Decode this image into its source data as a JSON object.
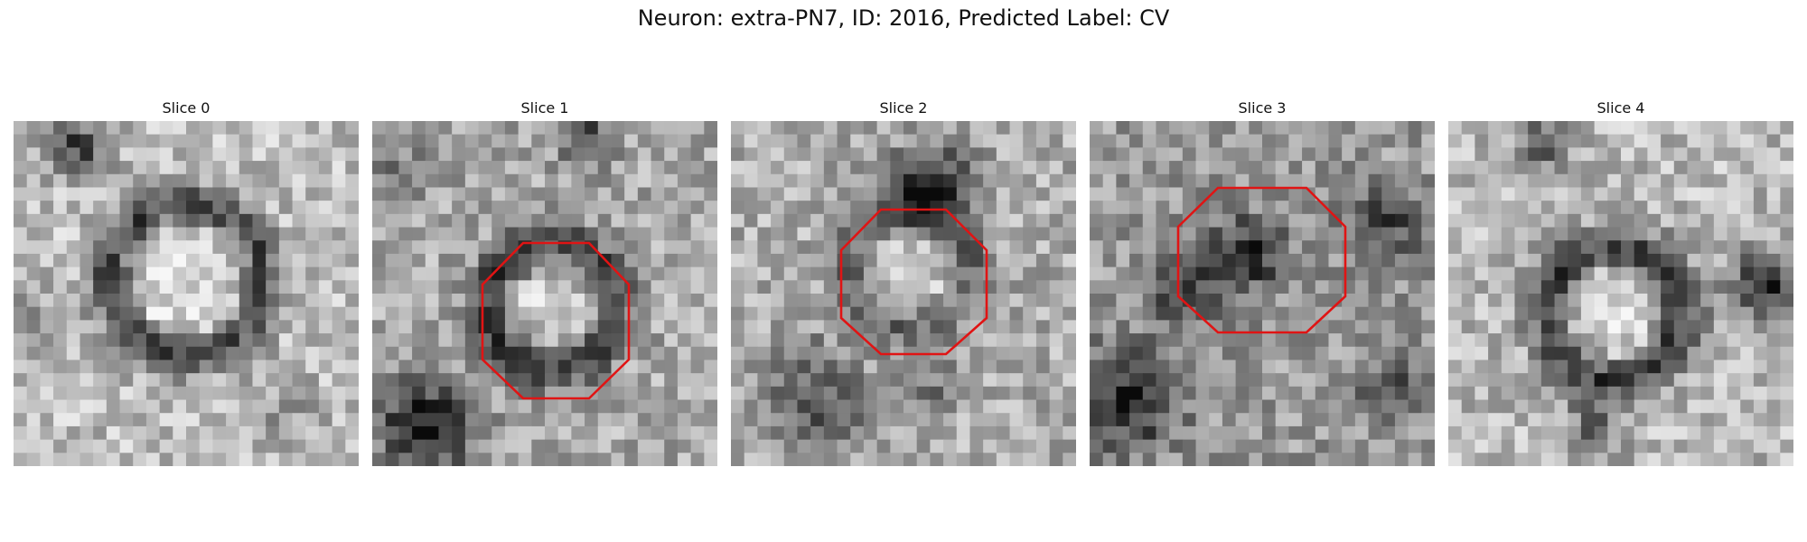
{
  "figure": {
    "title": "Neuron: extra-PN7, ID: 2016, Predicted Label: CV"
  },
  "panels": [
    {
      "title": "Slice 0",
      "roi_shown": false
    },
    {
      "title": "Slice 1",
      "roi_shown": true
    },
    {
      "title": "Slice 2",
      "roi_shown": true
    },
    {
      "title": "Slice 3",
      "roi_shown": true
    },
    {
      "title": "Slice 4",
      "roi_shown": false
    }
  ],
  "colors": {
    "roi_outline": "#e01414",
    "colormap": "grayscale"
  }
}
